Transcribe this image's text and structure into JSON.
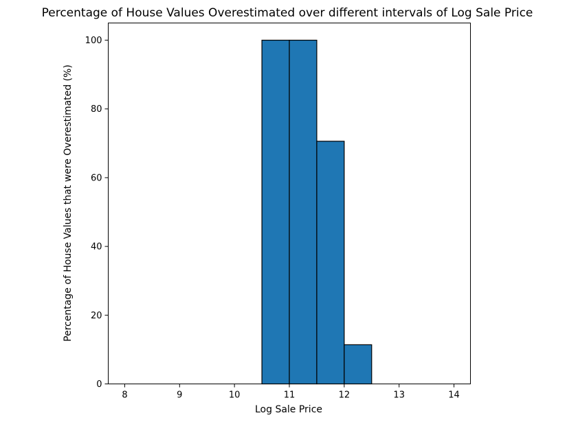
{
  "chart_data": {
    "type": "bar",
    "title": "Percentage of House Values Overestimated over different intervals of Log Sale Price",
    "xlabel": "Log Sale Price",
    "ylabel": "Percentage of House Values that were Overestimated (%)",
    "xlim": [
      7.7,
      14.3
    ],
    "ylim": [
      0,
      105
    ],
    "xticks": [
      8,
      9,
      10,
      11,
      12,
      13,
      14
    ],
    "yticks": [
      0,
      20,
      40,
      60,
      80,
      100
    ],
    "bins": [
      {
        "start": 10.5,
        "end": 11.0,
        "value": 100
      },
      {
        "start": 11.0,
        "end": 11.5,
        "value": 100
      },
      {
        "start": 11.5,
        "end": 12.0,
        "value": 70.6
      },
      {
        "start": 12.0,
        "end": 12.5,
        "value": 11.4
      }
    ],
    "bar_color": "#1f77b4",
    "bar_edge_color": "#000000",
    "grid": false,
    "legend": "none"
  }
}
